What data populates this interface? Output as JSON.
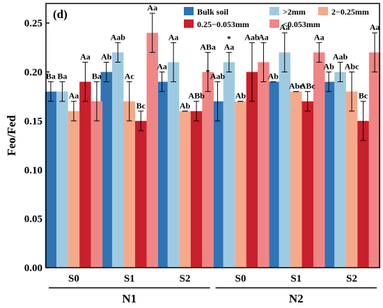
{
  "chart_data": {
    "type": "bar",
    "panel_label": "(d)",
    "ylabel": "Feo/Fed",
    "ylim": [
      0,
      0.27
    ],
    "yticks": [
      "0.00",
      "0.05",
      "0.10",
      "0.15",
      "0.20",
      "0.25"
    ],
    "ytick_values": [
      0,
      0.05,
      0.1,
      0.15,
      0.2,
      0.25
    ],
    "categories": [
      "S0",
      "S1",
      "S2",
      "S0",
      "S1",
      "S2"
    ],
    "groups": [
      {
        "name": "N1",
        "span": [
          0,
          2
        ]
      },
      {
        "name": "N2",
        "span": [
          3,
          5
        ]
      }
    ],
    "legend_position": "top-right",
    "series": [
      {
        "name": "Bulk soil",
        "color": "#2f74b5",
        "values": [
          0.18,
          0.2,
          0.19,
          0.17,
          0.19,
          0.19
        ],
        "errors": [
          0.01,
          0.01,
          0.01,
          0.02,
          0.0,
          0.01
        ],
        "labels": [
          "Ba",
          "Ab",
          "Aa",
          "Aab",
          "Ab",
          "Ab"
        ]
      },
      {
        "name": ">2mm",
        "color": "#9ecae1",
        "values": [
          0.18,
          0.22,
          0.21,
          0.21,
          0.22,
          0.2
        ],
        "errors": [
          0.01,
          0.01,
          0.02,
          0.01,
          0.02,
          0.01
        ],
        "labels": [
          "Ba",
          "Aab",
          "Aa",
          "Aa",
          "Aa",
          "Aab"
        ]
      },
      {
        "name": "2−0.25mm",
        "color": "#f4a98a",
        "values": [
          0.16,
          0.17,
          0.16,
          0.17,
          0.18,
          0.18
        ],
        "errors": [
          0.01,
          0.02,
          0.0,
          0.0,
          0.0,
          0.02
        ],
        "labels": [
          "Aa",
          "Ac",
          "Ab",
          "Ab",
          "Abc",
          "Abc"
        ]
      },
      {
        "name": "0.25−0.053mm",
        "color": "#c8202c",
        "values": [
          0.19,
          0.15,
          0.16,
          0.2,
          0.17,
          0.15
        ],
        "errors": [
          0.02,
          0.01,
          0.01,
          0.03,
          0.01,
          0.02
        ],
        "labels": [
          "Aa",
          "Bc",
          "ABb",
          "Aab",
          "ABc",
          "Bc"
        ]
      },
      {
        "name": "<0.053mm",
        "color": "#f08585",
        "values": [
          0.17,
          0.24,
          0.2,
          0.21,
          0.22,
          0.22
        ],
        "errors": [
          0.02,
          0.02,
          0.02,
          0.02,
          0.01,
          0.02
        ],
        "labels": [
          "Ba",
          "Aa",
          "ABa",
          "Aa",
          "Aa",
          "Aa"
        ]
      }
    ],
    "annotations": [
      {
        "text": "*",
        "category_index": 3,
        "series_index": 0
      },
      {
        "text": "*",
        "category_index": 3,
        "series_index": 1
      }
    ]
  }
}
